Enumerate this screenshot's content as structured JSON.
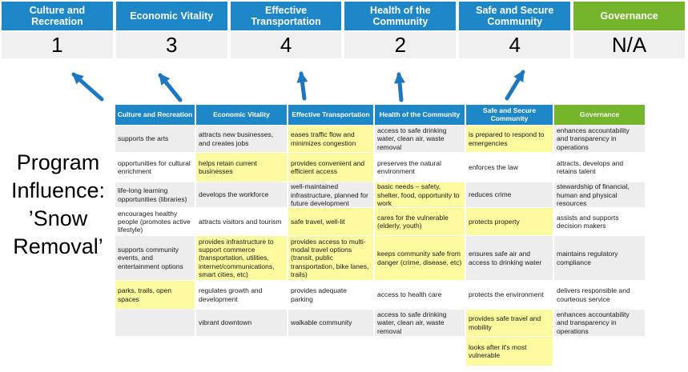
{
  "colors": {
    "header_blue": "#1E87C7",
    "header_green": "#74B52B",
    "arrow_blue": "#1C78C0",
    "highlight_yellow": "#FDF99E",
    "row_gray": "#EDEDED",
    "row_white": "#FFFFFF",
    "score_bg": "#F0F0F0",
    "text_dark": "#1A1A1A"
  },
  "program_title": {
    "text": "Program Influence: ’Snow Removal’",
    "lines": [
      "Program",
      "Influence:",
      "’Snow",
      "Removal’"
    ]
  },
  "priorities": [
    {
      "label": "Culture and\nRecreation",
      "score": "1",
      "color_key": "header_blue"
    },
    {
      "label": "Economic Vitality",
      "score": "3",
      "color_key": "header_blue"
    },
    {
      "label": "Effective\nTransportation",
      "score": "4",
      "color_key": "header_blue"
    },
    {
      "label": "Health of the\nCommunity",
      "score": "2",
      "color_key": "header_blue"
    },
    {
      "label": "Safe and Secure\nCommunity",
      "score": "4",
      "color_key": "header_blue"
    },
    {
      "label": "Governance",
      "score": "N/A",
      "color_key": "header_green"
    }
  ],
  "arrows": {
    "count": 5,
    "targets": [
      "Culture and Recreation",
      "Economic Vitality",
      "Effective Transportation",
      "Health of the Community",
      "Safe and Secure Community"
    ]
  },
  "matrix": {
    "columns": [
      {
        "header": "Culture and Recreation",
        "color_key": "header_blue",
        "cells": [
          {
            "text": "supports the arts",
            "highlight": false
          },
          {
            "text": "opportunities for cultural enrichment",
            "highlight": false
          },
          {
            "text": "life-long learning opportunities (libraries)",
            "highlight": false
          },
          {
            "text": "encourages healthy people (promotes active lifestyle)",
            "highlight": false
          },
          {
            "text": "supports community events, and entertainment options",
            "highlight": false
          },
          {
            "text": "parks, trails, open spaces",
            "highlight": true
          },
          {
            "text": "",
            "highlight": false
          },
          {
            "text": "",
            "highlight": false
          }
        ]
      },
      {
        "header": "Economic Vitality",
        "color_key": "header_blue",
        "cells": [
          {
            "text": "attracts new businesses, and creates jobs",
            "highlight": false
          },
          {
            "text": "helps retain current businesses",
            "highlight": true
          },
          {
            "text": "develops the workforce",
            "highlight": false
          },
          {
            "text": "attracts visitors and tourism",
            "highlight": false
          },
          {
            "text": "provides infrastructure to support commerce (transportation, utilities, internet/communications, smart cities, etc)",
            "highlight": true
          },
          {
            "text": "regulates growth and development",
            "highlight": false
          },
          {
            "text": "vibrant downtown",
            "highlight": false
          },
          {
            "text": "",
            "highlight": false
          }
        ]
      },
      {
        "header": "Effective Transportation",
        "color_key": "header_blue",
        "cells": [
          {
            "text": "eases traffic flow and minimizes congestion",
            "highlight": true
          },
          {
            "text": "provides convenient and efficient access",
            "highlight": true
          },
          {
            "text": "well-maintained infrastructure, planned for future development",
            "highlight": false
          },
          {
            "text": "safe travel, well-lit",
            "highlight": true
          },
          {
            "text": "provides access to multi-modal travel options (transit, public transportation, bike lanes, trails)",
            "highlight": true
          },
          {
            "text": "provides adequate parking",
            "highlight": false
          },
          {
            "text": "walkable community",
            "highlight": false
          },
          {
            "text": "",
            "highlight": false
          }
        ]
      },
      {
        "header": "Health of the Community",
        "color_key": "header_blue",
        "cells": [
          {
            "text": "access to safe drinking water, clean air, waste removal",
            "highlight": false
          },
          {
            "text": "preserves the natural environment",
            "highlight": false
          },
          {
            "text": "basic needs – safety, shelter, food, opportunity to work",
            "highlight": true
          },
          {
            "text": "cares for the vulnerable (elderly, youth)",
            "highlight": true
          },
          {
            "text": "keeps community safe from danger (crime, disease, etc)",
            "highlight": true
          },
          {
            "text": "access to health care",
            "highlight": false
          },
          {
            "text": "access to safe drinking water, clean air, waste removal",
            "highlight": false
          },
          {
            "text": "",
            "highlight": false
          }
        ]
      },
      {
        "header": "Safe and Secure\nCommunity",
        "color_key": "header_blue",
        "cells": [
          {
            "text": "is prepared to respond to emergencies",
            "highlight": true
          },
          {
            "text": "enforces the law",
            "highlight": false
          },
          {
            "text": "reduces crime",
            "highlight": false
          },
          {
            "text": "protects property",
            "highlight": true
          },
          {
            "text": "ensures safe air and access to drinking water",
            "highlight": false
          },
          {
            "text": "protects the environment",
            "highlight": false
          },
          {
            "text": "provides safe travel and mobility",
            "highlight": true
          },
          {
            "text": "looks after it's most vulnerable",
            "highlight": true
          }
        ]
      },
      {
        "header": "Governance",
        "color_key": "header_green",
        "cells": [
          {
            "text": "enhances accountability and transparency in operations",
            "highlight": false
          },
          {
            "text": "attracts, develops and retains talent",
            "highlight": false
          },
          {
            "text": "stewardship of financial, human and physical resources",
            "highlight": false
          },
          {
            "text": "assists and supports decision makers",
            "highlight": false
          },
          {
            "text": "maintains regulatory compliance",
            "highlight": false
          },
          {
            "text": "delivers responsible and courteous service",
            "highlight": false
          },
          {
            "text": "enhances accountability and transparency in operations",
            "highlight": false
          },
          {
            "text": "",
            "highlight": false
          }
        ]
      }
    ]
  }
}
